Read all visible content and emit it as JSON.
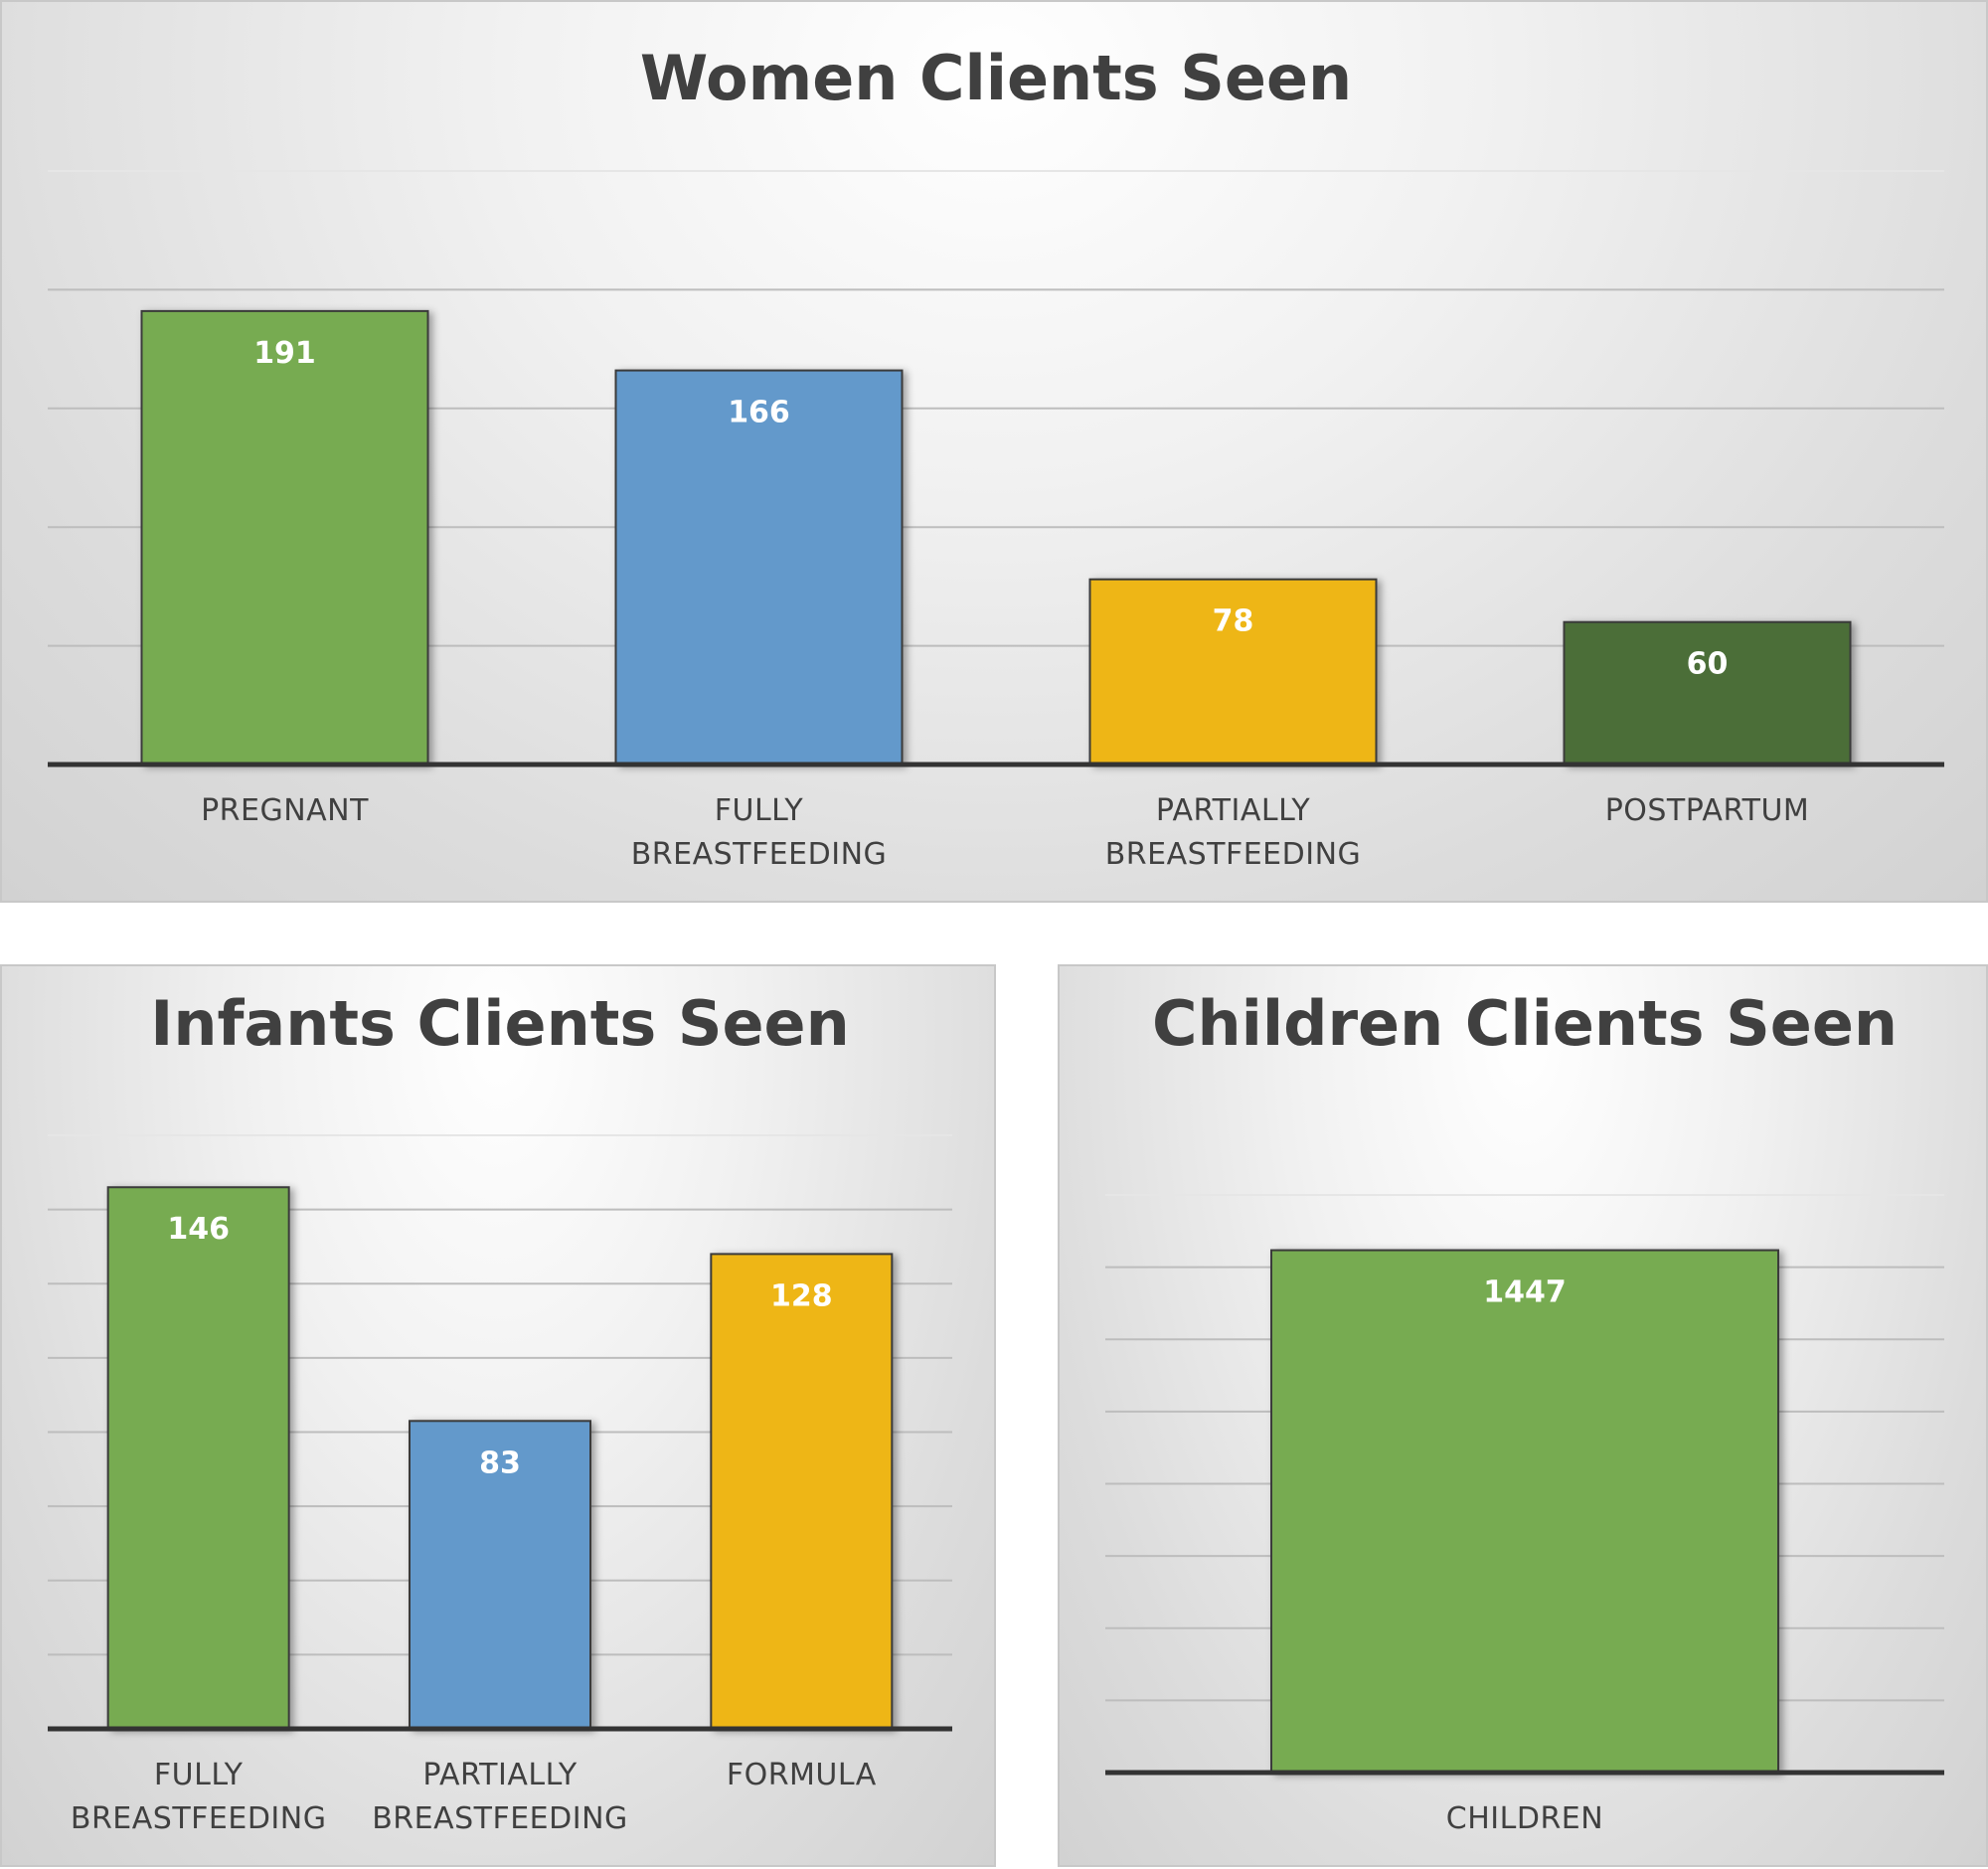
{
  "colors": {
    "green": "#77ab51",
    "blue": "#6399cb",
    "yellow": "#eeb615",
    "dark_green": "#4c6e39"
  },
  "chart_data": [
    {
      "type": "bar",
      "title": "Women Clients Seen",
      "categories": [
        [
          "PREGNANT"
        ],
        [
          "FULLY",
          "BREASTFEEDING"
        ],
        [
          "PARTIALLY",
          "BREASTFEEDING"
        ],
        [
          "POSTPARTUM"
        ]
      ],
      "values": [
        191,
        166,
        78,
        60
      ],
      "data_labels": [
        "191",
        "166",
        "78",
        "60"
      ],
      "bar_colors": [
        "green",
        "blue",
        "yellow",
        "dark_green"
      ],
      "ylim": [
        0,
        250
      ],
      "grid_step": 50,
      "grid": true
    },
    {
      "type": "bar",
      "title": "Infants Clients Seen",
      "categories": [
        [
          "FULLY",
          "BREASTFEEDING"
        ],
        [
          "PARTIALLY",
          "BREASTFEEDING"
        ],
        [
          "FORMULA"
        ]
      ],
      "values": [
        146,
        83,
        128
      ],
      "data_labels": [
        "146",
        "83",
        "128"
      ],
      "bar_colors": [
        "green",
        "blue",
        "yellow"
      ],
      "ylim": [
        0,
        160
      ],
      "grid_step": 20,
      "grid": true
    },
    {
      "type": "bar",
      "title": "Children Clients Seen",
      "categories": [
        [
          "CHILDREN"
        ]
      ],
      "values": [
        1447
      ],
      "data_labels": [
        "1447"
      ],
      "bar_colors": [
        "green"
      ],
      "ylim": [
        0,
        1600
      ],
      "grid_step": 200,
      "grid": true
    }
  ]
}
